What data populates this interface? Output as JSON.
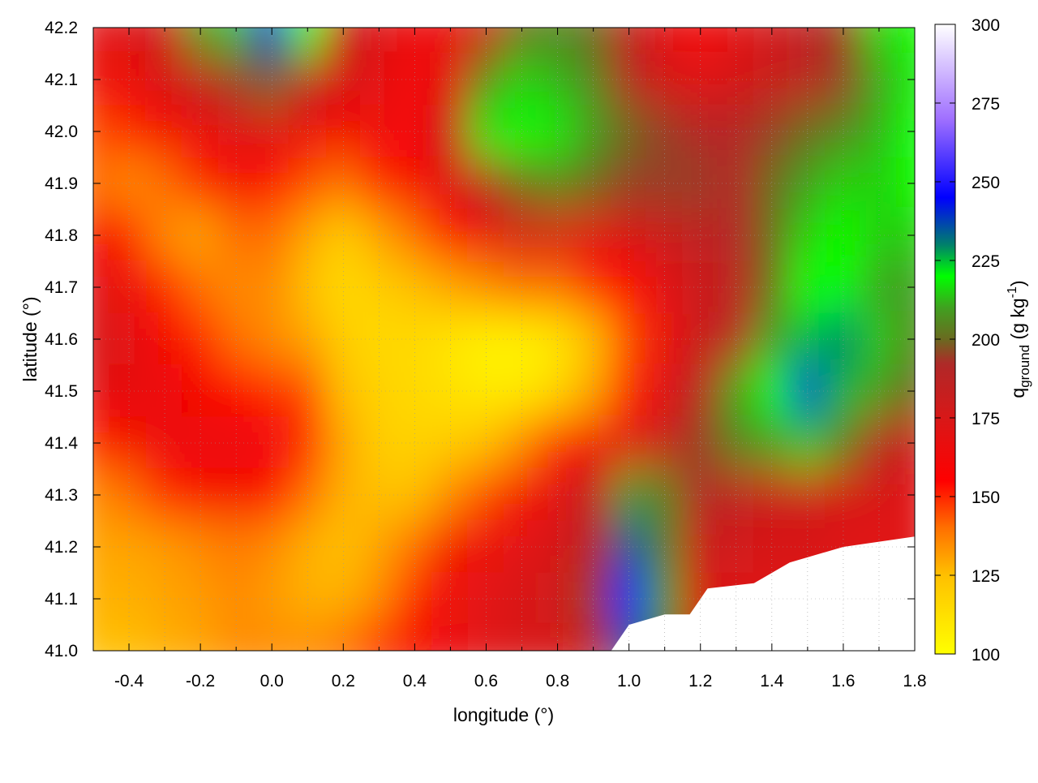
{
  "chart_data": {
    "type": "heatmap",
    "title": "",
    "xlabel": "longitude (°)",
    "ylabel": "latitude (°)",
    "colorbar_label": {
      "main": "q",
      "sub": "ground",
      "unit_pre": " (g kg",
      "sup": "-1",
      "unit_post": ")"
    },
    "xlim": [
      -0.5,
      1.8
    ],
    "ylim": [
      41.0,
      42.2
    ],
    "clim": [
      100,
      300
    ],
    "xticks": [
      "-0.4",
      "-0.2",
      "0.0",
      "0.2",
      "0.4",
      "0.6",
      "0.8",
      "1.0",
      "1.2",
      "1.4",
      "1.6",
      "1.8"
    ],
    "yticks": [
      "41.0",
      "41.1",
      "41.2",
      "41.3",
      "41.4",
      "41.5",
      "41.6",
      "41.7",
      "41.8",
      "41.9",
      "42.0",
      "42.1",
      "42.2"
    ],
    "cticks": [
      "100",
      "125",
      "150",
      "175",
      "200",
      "225",
      "250",
      "275",
      "300"
    ],
    "grid": true,
    "colormap": [
      [
        100,
        "#ffff00"
      ],
      [
        125,
        "#ffc000"
      ],
      [
        140,
        "#ff7000"
      ],
      [
        155,
        "#ff0000"
      ],
      [
        175,
        "#d81818"
      ],
      [
        192,
        "#b02828"
      ],
      [
        200,
        "#6a6a20"
      ],
      [
        210,
        "#40a020"
      ],
      [
        220,
        "#00ff00"
      ],
      [
        230,
        "#00806a"
      ],
      [
        245,
        "#0000ff"
      ],
      [
        270,
        "#a070ff"
      ],
      [
        300,
        "#ffffff"
      ]
    ],
    "lon": [
      -0.5,
      -0.4,
      -0.3,
      -0.2,
      -0.1,
      0.0,
      0.1,
      0.2,
      0.3,
      0.4,
      0.5,
      0.6,
      0.7,
      0.8,
      0.9,
      1.0,
      1.1,
      1.2,
      1.3,
      1.4,
      1.5,
      1.6,
      1.7,
      1.8
    ],
    "lat": [
      42.2,
      42.1,
      42.0,
      41.9,
      41.8,
      41.7,
      41.6,
      41.5,
      41.4,
      41.3,
      41.2,
      41.1,
      41.0
    ],
    "values": [
      [
        170,
        172,
        180,
        210,
        225,
        240,
        220,
        185,
        172,
        165,
        165,
        180,
        200,
        205,
        200,
        185,
        170,
        160,
        170,
        178,
        185,
        195,
        215,
        220
      ],
      [
        165,
        165,
        175,
        185,
        195,
        200,
        190,
        175,
        170,
        160,
        170,
        205,
        215,
        212,
        205,
        190,
        175,
        170,
        175,
        180,
        185,
        195,
        210,
        218
      ],
      [
        145,
        150,
        160,
        165,
        170,
        172,
        165,
        160,
        165,
        158,
        185,
        222,
        220,
        218,
        210,
        200,
        195,
        190,
        190,
        195,
        200,
        205,
        212,
        220
      ],
      [
        140,
        135,
        140,
        150,
        160,
        155,
        145,
        140,
        150,
        160,
        170,
        190,
        200,
        205,
        200,
        195,
        195,
        195,
        190,
        200,
        210,
        215,
        215,
        220
      ],
      [
        160,
        150,
        135,
        130,
        140,
        140,
        130,
        120,
        130,
        140,
        155,
        165,
        175,
        175,
        170,
        175,
        180,
        185,
        190,
        200,
        215,
        220,
        215,
        215
      ],
      [
        170,
        165,
        150,
        140,
        135,
        135,
        125,
        115,
        120,
        125,
        130,
        135,
        140,
        140,
        150,
        155,
        170,
        180,
        185,
        200,
        220,
        220,
        210,
        210
      ],
      [
        175,
        170,
        160,
        150,
        140,
        135,
        130,
        120,
        115,
        115,
        110,
        105,
        105,
        110,
        125,
        145,
        165,
        180,
        190,
        210,
        225,
        230,
        215,
        205
      ],
      [
        170,
        168,
        165,
        160,
        155,
        150,
        145,
        125,
        118,
        115,
        112,
        108,
        108,
        115,
        130,
        150,
        170,
        190,
        210,
        220,
        240,
        225,
        210,
        200
      ],
      [
        150,
        160,
        165,
        165,
        165,
        162,
        150,
        130,
        120,
        118,
        120,
        125,
        135,
        150,
        160,
        170,
        180,
        195,
        205,
        210,
        215,
        205,
        190,
        180
      ],
      [
        135,
        140,
        150,
        158,
        160,
        155,
        140,
        128,
        125,
        125,
        135,
        145,
        160,
        170,
        185,
        210,
        205,
        190,
        185,
        180,
        180,
        175,
        175,
        170
      ],
      [
        130,
        130,
        132,
        135,
        138,
        135,
        128,
        125,
        130,
        140,
        160,
        165,
        170,
        175,
        190,
        235,
        205,
        180,
        178,
        175,
        175,
        172,
        170,
        170
      ],
      [
        128,
        128,
        130,
        132,
        135,
        132,
        128,
        128,
        135,
        150,
        165,
        170,
        175,
        178,
        195,
        245,
        210,
        175,
        172,
        172,
        172,
        172,
        172,
        172
      ],
      [
        125,
        125,
        128,
        130,
        135,
        135,
        135,
        140,
        150,
        160,
        165,
        170,
        175,
        175,
        185,
        235,
        205,
        175,
        175,
        175,
        175,
        175,
        175,
        175
      ]
    ],
    "nodata_boundary": [
      [
        0.95,
        41.0
      ],
      [
        1.0,
        41.05
      ],
      [
        1.1,
        41.07
      ],
      [
        1.17,
        41.07
      ],
      [
        1.22,
        41.12
      ],
      [
        1.35,
        41.13
      ],
      [
        1.45,
        41.17
      ],
      [
        1.6,
        41.2
      ],
      [
        1.8,
        41.22
      ],
      [
        1.8,
        41.0
      ]
    ]
  }
}
